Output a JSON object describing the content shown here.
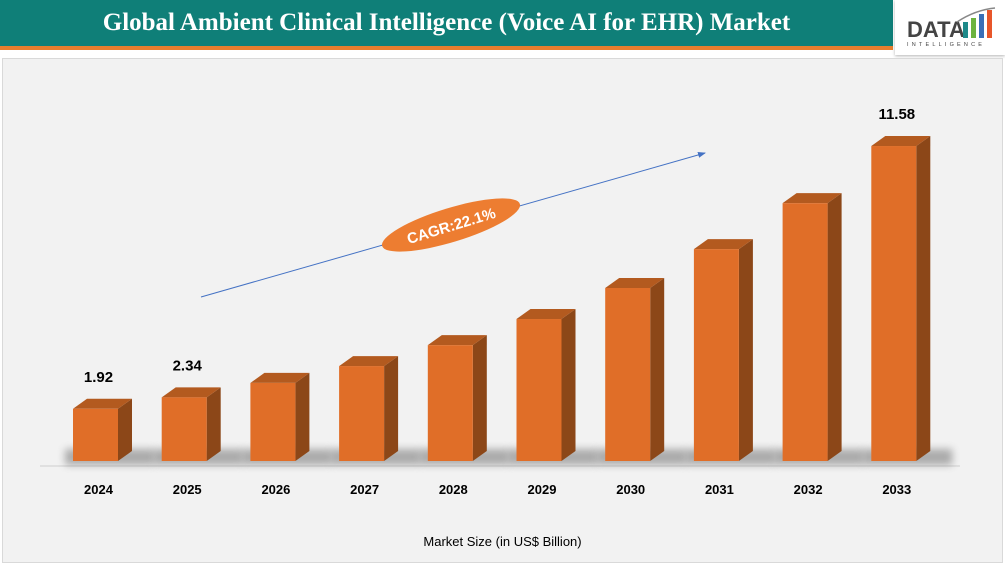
{
  "header": {
    "title": "Global Ambient Clinical Intelligence (Voice AI for EHR) Market"
  },
  "logo": {
    "text": "DATA",
    "subtext": "INTELLIGENCE"
  },
  "chart_data": {
    "type": "bar",
    "title": "Global Ambient Clinical Intelligence (Voice AI for EHR) Market",
    "xlabel": "Market Size (in US$ Billion)",
    "ylabel": "",
    "categories": [
      "2024",
      "2025",
      "2026",
      "2027",
      "2028",
      "2029",
      "2030",
      "2031",
      "2032",
      "2033"
    ],
    "values": [
      1.92,
      2.34,
      2.87,
      3.49,
      4.26,
      5.22,
      6.36,
      7.79,
      9.48,
      11.58
    ],
    "data_labels": {
      "0": "1.92",
      "1": "2.34",
      "9": "11.58"
    },
    "ylim": [
      0,
      12
    ],
    "grid": false,
    "annotation": "CAGR:22.1%",
    "colors": {
      "bar_front": "#e06e28",
      "bar_side": "#8c4718",
      "bar_top": "#b35a1f",
      "annotation": "#ed7d31",
      "arrow": "#4472c4",
      "title_bg": "#0f7f78"
    }
  }
}
